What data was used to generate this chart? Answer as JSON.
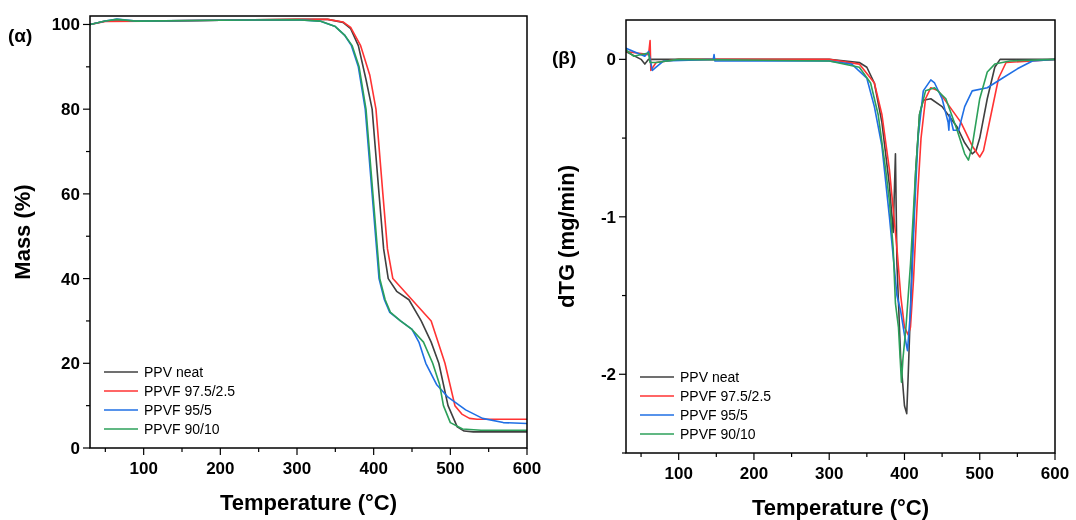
{
  "chart_data": [
    {
      "type": "line",
      "title": "(α)",
      "xlabel": "Temperature (°C)",
      "ylabel": "Mass (%)",
      "xlim": [
        30,
        600
      ],
      "ylim": [
        0,
        102
      ],
      "xticks": [
        {
          "value": 50,
          "label": null
        },
        100,
        {
          "value": 150,
          "label": null
        },
        200,
        {
          "value": 250,
          "label": null
        },
        300,
        {
          "value": 350,
          "label": null
        },
        400,
        {
          "value": 450,
          "label": null
        },
        500,
        {
          "value": 550,
          "label": null
        },
        600
      ],
      "yticks": [
        0,
        {
          "value": 10,
          "label": null
        },
        20,
        {
          "value": 30,
          "label": null
        },
        40,
        {
          "value": 50,
          "label": null
        },
        60,
        {
          "value": 70,
          "label": null
        },
        80,
        {
          "value": 90,
          "label": null
        },
        100
      ],
      "grid": false,
      "legend": "bottom left",
      "line_style": "solid",
      "marker": "none",
      "series": [
        {
          "name": "PPV neat",
          "color": "#404040",
          "x": [
            30,
            50,
            100,
            200,
            300,
            340,
            360,
            370,
            380,
            390,
            398,
            407,
            413,
            419,
            430,
            446,
            462,
            475,
            485,
            497,
            509,
            518,
            530,
            600
          ],
          "values": [
            100,
            100.8,
            100.8,
            101,
            101.2,
            101.2,
            100.5,
            99,
            95,
            87,
            80,
            60,
            47,
            40,
            37,
            35,
            30,
            25,
            20,
            10,
            5,
            4,
            3.8,
            3.8
          ]
        },
        {
          "name": "PPVF 97.5/2.5",
          "color": "#ff3333",
          "x": [
            30,
            50,
            100,
            200,
            300,
            340,
            360,
            370,
            383,
            395,
            403,
            412,
            418,
            425,
            440,
            460,
            475,
            493,
            506,
            515,
            525,
            535,
            600
          ],
          "values": [
            100,
            100.7,
            100.8,
            101,
            101.2,
            101.2,
            100.6,
            99.3,
            95,
            88,
            80,
            60,
            47,
            40,
            37,
            33,
            30,
            20,
            10,
            8,
            7,
            6.8,
            6.8
          ]
        },
        {
          "name": "PPVF 95/5",
          "color": "#1f6fe5",
          "x": [
            30,
            50,
            65,
            90,
            200,
            300,
            330,
            350,
            362,
            371,
            380,
            389,
            398,
            407,
            414,
            421,
            435,
            450,
            459,
            468,
            482,
            497,
            520,
            542,
            569,
            600
          ],
          "values": [
            100,
            100.8,
            101.3,
            100.8,
            101,
            101.1,
            100.8,
            99.5,
            97.5,
            95,
            90,
            80,
            60,
            40,
            35,
            32,
            30,
            28,
            25,
            20,
            15,
            12,
            9,
            7,
            6,
            5.8
          ]
        },
        {
          "name": "PPVF 90/10",
          "color": "#2ca05a",
          "x": [
            30,
            50,
            65,
            90,
            200,
            300,
            330,
            350,
            362,
            372,
            381,
            390,
            399,
            408,
            415,
            422,
            435,
            450,
            465,
            477,
            486,
            491,
            500,
            516,
            540,
            600
          ],
          "values": [
            100,
            100.8,
            101.2,
            100.8,
            101,
            101.1,
            100.8,
            99.5,
            97.5,
            95,
            90,
            80,
            60,
            40,
            35,
            32,
            30,
            28,
            25,
            20,
            15,
            10,
            6,
            4.5,
            4.2,
            4.2
          ]
        }
      ]
    },
    {
      "type": "line",
      "title": "(β)",
      "xlabel": "Temperature (°C)",
      "ylabel": "dTG (mg/min)",
      "xlim": [
        30,
        600
      ],
      "ylim": [
        -2.5,
        0.25
      ],
      "xticks": [
        {
          "value": 50,
          "label": null
        },
        100,
        {
          "value": 150,
          "label": null
        },
        200,
        {
          "value": 250,
          "label": null
        },
        300,
        {
          "value": 350,
          "label": null
        },
        400,
        {
          "value": 450,
          "label": null
        },
        500,
        {
          "value": 550,
          "label": null
        },
        600
      ],
      "yticks": [
        {
          "value": -2.5,
          "label": null
        },
        -2,
        {
          "value": -1.5,
          "label": null
        },
        -1,
        {
          "value": -0.5,
          "label": null
        },
        0
      ],
      "grid": false,
      "legend": "bottom left",
      "line_style": "solid",
      "marker": "none",
      "series": [
        {
          "name": "PPV neat",
          "color": "#404040",
          "x": [
            30,
            50,
            55,
            60,
            100,
            300,
            340,
            350,
            360,
            370,
            380,
            385,
            388,
            390,
            395,
            400,
            403,
            405,
            410,
            415,
            420,
            425,
            435,
            450,
            470,
            480,
            490,
            495,
            500,
            510,
            520,
            527,
            600
          ],
          "values": [
            0.05,
            0,
            -0.03,
            0,
            0,
            0,
            -0.02,
            -0.05,
            -0.15,
            -0.4,
            -0.8,
            -1.1,
            -0.6,
            -1.3,
            -1.9,
            -2.2,
            -2.25,
            -2,
            -1.3,
            -0.7,
            -0.35,
            -0.26,
            -0.25,
            -0.3,
            -0.43,
            -0.53,
            -0.6,
            -0.58,
            -0.5,
            -0.25,
            -0.05,
            0,
            0
          ]
        },
        {
          "name": "PPVF 97.5/2.5",
          "color": "#ff3333",
          "x": [
            30,
            60,
            62,
            63,
            70,
            100,
            300,
            340,
            360,
            370,
            380,
            390,
            395,
            400,
            405,
            408,
            412,
            417,
            422,
            428,
            435,
            445,
            460,
            475,
            490,
            500,
            505,
            515,
            525,
            535,
            600
          ],
          "values": [
            0.05,
            0.03,
            0.12,
            -0.07,
            -0.02,
            0,
            0,
            -0.03,
            -0.15,
            -0.35,
            -0.7,
            -1.2,
            -1.5,
            -1.7,
            -1.75,
            -1.7,
            -1.4,
            -0.9,
            -0.5,
            -0.25,
            -0.18,
            -0.2,
            -0.3,
            -0.4,
            -0.55,
            -0.62,
            -0.58,
            -0.35,
            -0.12,
            -0.02,
            0
          ]
        },
        {
          "name": "PPVF 95/5",
          "color": "#1f6fe5",
          "x": [
            30,
            55,
            60,
            65,
            70,
            80,
            146,
            147,
            148,
            300,
            330,
            350,
            360,
            370,
            380,
            390,
            395,
            400,
            404,
            408,
            413,
            418,
            425,
            435,
            440,
            450,
            458,
            459,
            460,
            465,
            472,
            480,
            490,
            510,
            530,
            550,
            570,
            600
          ],
          "values": [
            0.07,
            0.02,
            0.05,
            -0.07,
            -0.05,
            -0.01,
            0,
            0.03,
            -0.01,
            -0.01,
            -0.03,
            -0.12,
            -0.3,
            -0.55,
            -1,
            -1.5,
            -1.6,
            -1.75,
            -1.85,
            -1.6,
            -1,
            -0.5,
            -0.2,
            -0.13,
            -0.15,
            -0.25,
            -0.4,
            -0.45,
            -0.35,
            -0.45,
            -0.45,
            -0.3,
            -0.2,
            -0.18,
            -0.12,
            -0.06,
            -0.01,
            0
          ]
        },
        {
          "name": "PPVF 90/10",
          "color": "#2ca05a",
          "x": [
            30,
            40,
            60,
            62,
            70,
            100,
            300,
            340,
            355,
            365,
            375,
            380,
            385,
            388,
            392,
            396,
            398,
            402,
            408,
            415,
            420,
            428,
            440,
            455,
            470,
            480,
            485,
            490,
            500,
            510,
            520,
            540,
            600
          ],
          "values": [
            0.06,
            0.02,
            0.04,
            -0.02,
            -0.02,
            0,
            -0.01,
            -0.05,
            -0.15,
            -0.35,
            -0.7,
            -0.9,
            -1.2,
            -1.55,
            -1.7,
            -2.05,
            -1.9,
            -1.7,
            -1.3,
            -0.7,
            -0.35,
            -0.2,
            -0.18,
            -0.25,
            -0.45,
            -0.6,
            -0.64,
            -0.55,
            -0.25,
            -0.08,
            -0.03,
            -0.01,
            0
          ]
        }
      ]
    }
  ]
}
